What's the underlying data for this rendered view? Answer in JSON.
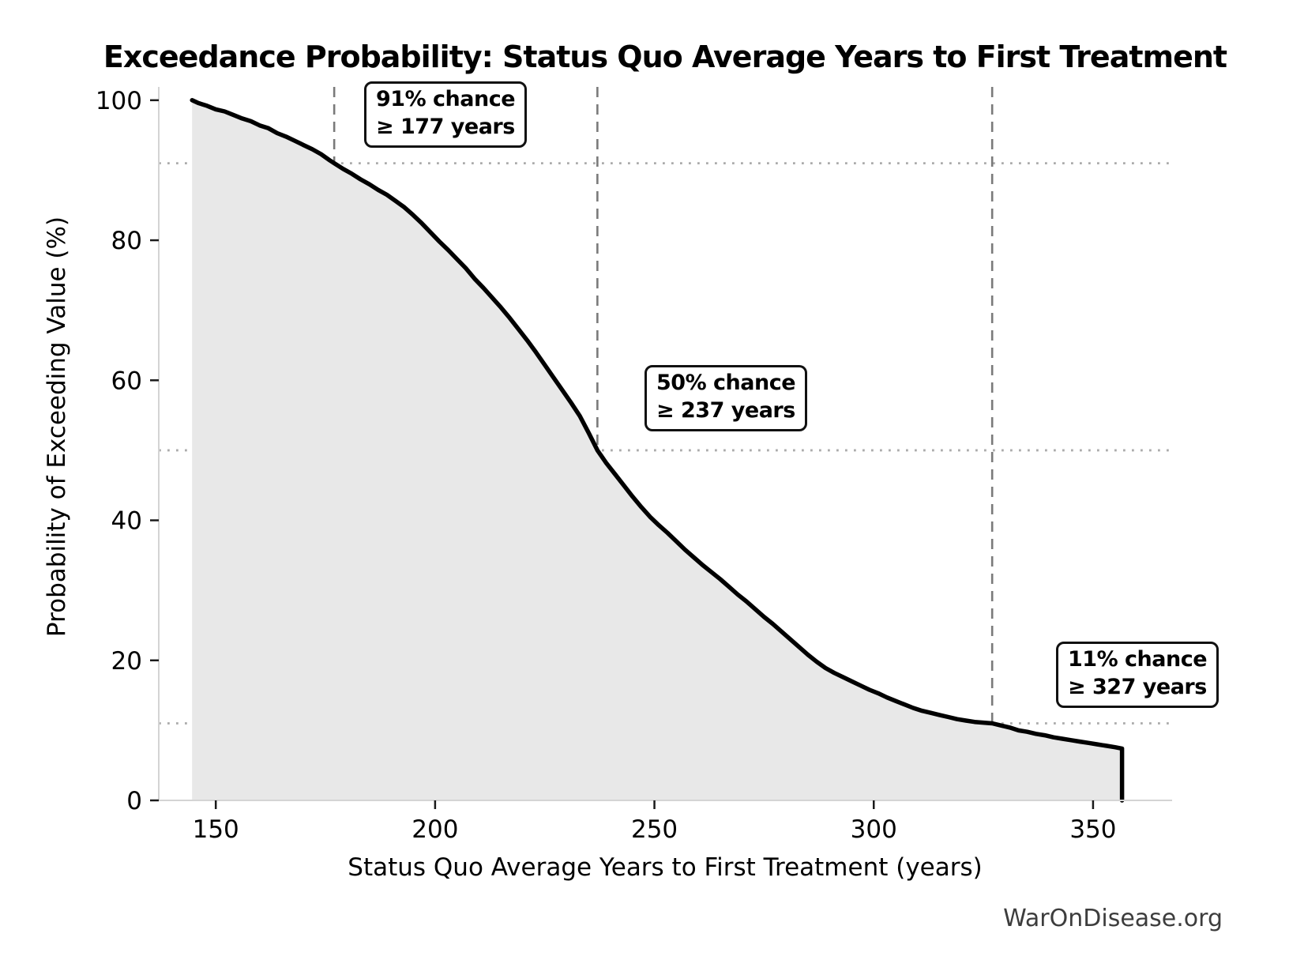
{
  "title": "Exceedance Probability: Status Quo Average Years to First Treatment",
  "watermark": "WarOnDisease.org",
  "chart_data": {
    "type": "area",
    "title": "Exceedance Probability: Status Quo Average Years to First Treatment",
    "xlabel": "Status Quo Average Years to First Treatment (years)",
    "ylabel": "Probability of Exceeding Value (%)",
    "x_ticks": [
      150,
      200,
      250,
      300,
      350
    ],
    "y_ticks": [
      0,
      20,
      40,
      60,
      80,
      100
    ],
    "xlim": [
      137,
      367.3
    ],
    "ylim": [
      0,
      101.9
    ],
    "grid": "reference-lines-only",
    "legend": "none",
    "line_color": "#000000",
    "fill_color": "#e8e8e8",
    "vline_color": "#7a7a7a",
    "hline_color": "#ababab",
    "spine_color": "#d4d4d4",
    "tick_color": "#1a1a1a",
    "annotations": [
      {
        "x": 177,
        "y": 91,
        "line1": "91% chance",
        "line2": "≥ 177 years"
      },
      {
        "x": 237,
        "y": 50,
        "line1": "50% chance",
        "line2": "≥ 237 years"
      },
      {
        "x": 327,
        "y": 11,
        "line1": "11% chance",
        "line2": "≥ 327 years"
      }
    ],
    "series": [
      {
        "name": "exceedance-curve",
        "points": [
          [
            144.6,
            100
          ],
          [
            146,
            99.6
          ],
          [
            148,
            99.2
          ],
          [
            150,
            98.7
          ],
          [
            152,
            98.4
          ],
          [
            154,
            97.9
          ],
          [
            156,
            97.4
          ],
          [
            158,
            97.0
          ],
          [
            160,
            96.4
          ],
          [
            162,
            96.0
          ],
          [
            164,
            95.3
          ],
          [
            166,
            94.8
          ],
          [
            168,
            94.2
          ],
          [
            170,
            93.6
          ],
          [
            172,
            93.0
          ],
          [
            174,
            92.3
          ],
          [
            176,
            91.4
          ],
          [
            177,
            91.0
          ],
          [
            179,
            90.2
          ],
          [
            181,
            89.5
          ],
          [
            183,
            88.7
          ],
          [
            185,
            88.0
          ],
          [
            187,
            87.2
          ],
          [
            189,
            86.5
          ],
          [
            191,
            85.6
          ],
          [
            193,
            84.7
          ],
          [
            195,
            83.6
          ],
          [
            197,
            82.4
          ],
          [
            199,
            81.1
          ],
          [
            201,
            79.8
          ],
          [
            203,
            78.6
          ],
          [
            205,
            77.3
          ],
          [
            207,
            76.0
          ],
          [
            209,
            74.5
          ],
          [
            211,
            73.2
          ],
          [
            213,
            71.8
          ],
          [
            215,
            70.4
          ],
          [
            217,
            68.9
          ],
          [
            219,
            67.3
          ],
          [
            221,
            65.7
          ],
          [
            223,
            64.0
          ],
          [
            225,
            62.2
          ],
          [
            227,
            60.4
          ],
          [
            229,
            58.6
          ],
          [
            231,
            56.8
          ],
          [
            233,
            54.9
          ],
          [
            235,
            52.5
          ],
          [
            237,
            50.0
          ],
          [
            239,
            48.2
          ],
          [
            241,
            46.6
          ],
          [
            243,
            45.0
          ],
          [
            245,
            43.4
          ],
          [
            247,
            41.9
          ],
          [
            249,
            40.5
          ],
          [
            251,
            39.3
          ],
          [
            253,
            38.2
          ],
          [
            255,
            37.0
          ],
          [
            257,
            35.8
          ],
          [
            259,
            34.7
          ],
          [
            261,
            33.6
          ],
          [
            263,
            32.6
          ],
          [
            265,
            31.6
          ],
          [
            267,
            30.5
          ],
          [
            269,
            29.4
          ],
          [
            271,
            28.4
          ],
          [
            273,
            27.3
          ],
          [
            275,
            26.2
          ],
          [
            277,
            25.2
          ],
          [
            279,
            24.1
          ],
          [
            281,
            23.0
          ],
          [
            283,
            21.9
          ],
          [
            285,
            20.8
          ],
          [
            287,
            19.8
          ],
          [
            289,
            18.9
          ],
          [
            291,
            18.2
          ],
          [
            293,
            17.6
          ],
          [
            295,
            17.0
          ],
          [
            297,
            16.4
          ],
          [
            299,
            15.8
          ],
          [
            301,
            15.3
          ],
          [
            303,
            14.7
          ],
          [
            305,
            14.2
          ],
          [
            307,
            13.7
          ],
          [
            309,
            13.2
          ],
          [
            311,
            12.8
          ],
          [
            313,
            12.5
          ],
          [
            315,
            12.2
          ],
          [
            317,
            11.9
          ],
          [
            319,
            11.6
          ],
          [
            321,
            11.4
          ],
          [
            323,
            11.2
          ],
          [
            325,
            11.1
          ],
          [
            327,
            11.0
          ],
          [
            329,
            10.7
          ],
          [
            331,
            10.4
          ],
          [
            333,
            10.0
          ],
          [
            335,
            9.8
          ],
          [
            337,
            9.5
          ],
          [
            339,
            9.3
          ],
          [
            341,
            9.0
          ],
          [
            343,
            8.8
          ],
          [
            345,
            8.6
          ],
          [
            347,
            8.4
          ],
          [
            349,
            8.2
          ],
          [
            351,
            8.0
          ],
          [
            353,
            7.8
          ],
          [
            355,
            7.6
          ],
          [
            356.6,
            7.4
          ],
          [
            356.6,
            0
          ]
        ]
      }
    ]
  }
}
